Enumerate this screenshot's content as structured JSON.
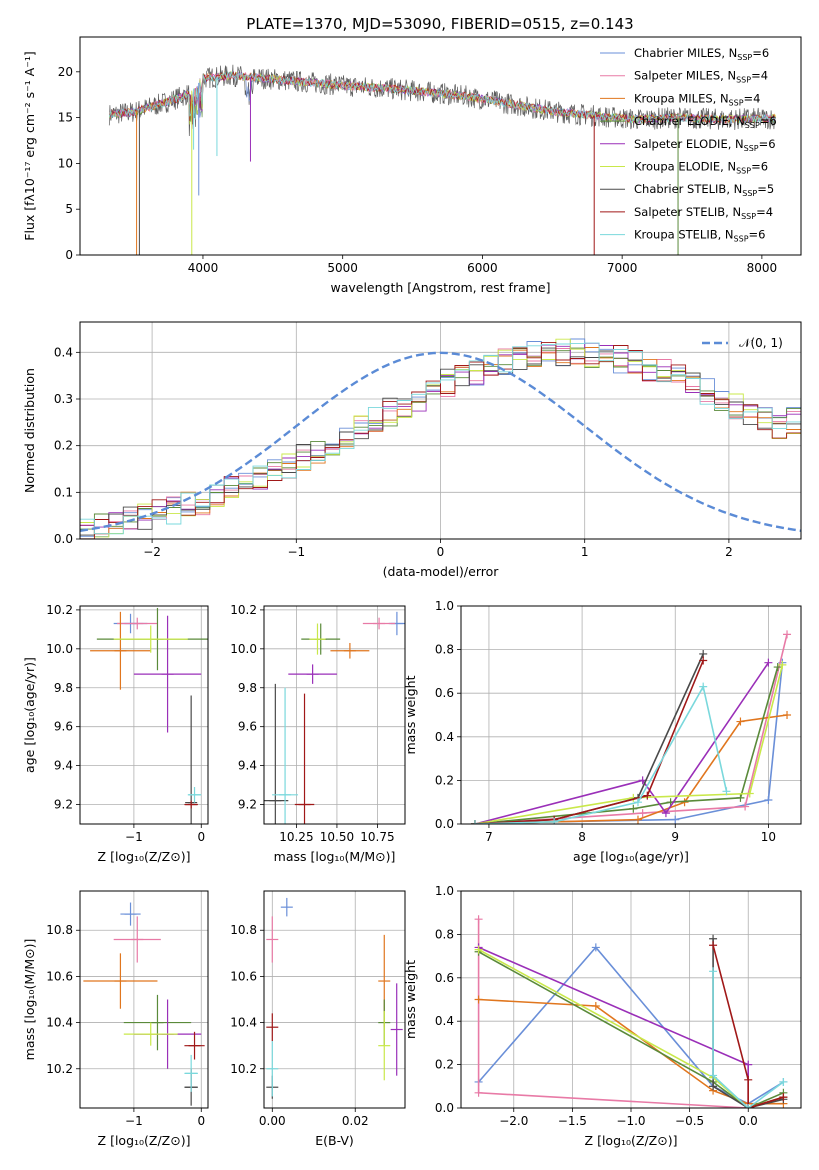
{
  "title": "PLATE=1370, MJD=53090, FIBERID=0515, z=0.143",
  "colors": {
    "Chabrier MILES": "#6a8fd8",
    "Salpeter MILES": "#e87aa6",
    "Kroupa MILES": "#e0761e",
    "Chabrier ELODIE": "#5a8a3a",
    "Salpeter ELODIE": "#9a2fb8",
    "Kroupa ELODIE": "#c9e84a",
    "Chabrier STELIB": "#4a4a4a",
    "Salpeter STELIB": "#a01818",
    "Kroupa STELIB": "#7ad8dc",
    "normal": "#5b8bd6",
    "grid": "#b0b0b0"
  },
  "chart_data": [
    {
      "type": "line",
      "id": "spectrum",
      "xlabel": "wavelength [Angstrom, rest frame]",
      "ylabel": "Flux [fλ10⁻¹⁷ erg cm⁻² s⁻¹ A⁻¹]",
      "xlim": [
        3120,
        8280
      ],
      "ylim": [
        0,
        23.8
      ],
      "xticks": [
        4000,
        5000,
        6000,
        7000,
        8000
      ],
      "yticks": [
        0,
        5,
        10,
        15,
        20
      ],
      "grid": false,
      "legend_position": "right",
      "legend": [
        {
          "name": "Chabrier MILES, N",
          "sub": "SSP",
          "tail": "=6"
        },
        {
          "name": "Salpeter MILES, N",
          "sub": "SSP",
          "tail": "=4"
        },
        {
          "name": "Kroupa MILES, N",
          "sub": "SSP",
          "tail": "=4"
        },
        {
          "name": "Chabrier ELODIE, N",
          "sub": "SSP",
          "tail": "=6"
        },
        {
          "name": "Salpeter ELODIE, N",
          "sub": "SSP",
          "tail": "=6"
        },
        {
          "name": "Kroupa ELODIE, N",
          "sub": "SSP",
          "tail": "=6"
        },
        {
          "name": "Chabrier STELIB, N",
          "sub": "SSP",
          "tail": "=5"
        },
        {
          "name": "Salpeter STELIB, N",
          "sub": "SSP",
          "tail": "=4"
        },
        {
          "name": "Kroupa STELIB, N",
          "sub": "SSP",
          "tail": "=6"
        }
      ],
      "continuum": {
        "x": [
          3300,
          3500,
          3700,
          3900,
          4000,
          4200,
          4500,
          4800,
          5000,
          5300,
          5600,
          5900,
          6200,
          6500,
          6800,
          7100,
          7400,
          7700,
          8000
        ],
        "y": [
          15.3,
          15.6,
          16.5,
          17.6,
          19.3,
          19.6,
          19.2,
          18.8,
          18.5,
          18.2,
          17.8,
          17.3,
          16.5,
          15.7,
          15.2,
          14.8,
          15.0,
          14.8,
          14.9
        ]
      },
      "dips": [
        {
          "x": 3525,
          "y": 0
        },
        {
          "x": 3545,
          "y": 0
        },
        {
          "x": 3920,
          "y": 0
        },
        {
          "x": 6800,
          "y": 0
        },
        {
          "x": 7400,
          "y": 0
        },
        {
          "x": 4100,
          "y": 10.8
        },
        {
          "x": 3970,
          "y": 6.5
        },
        {
          "x": 3933,
          "y": 11.5
        },
        {
          "x": 4340,
          "y": 10.2
        }
      ]
    },
    {
      "type": "line",
      "id": "residual-hist",
      "xlabel": "(data-model)/error",
      "ylabel": "Normed distribution",
      "xlim": [
        -2.5,
        2.5
      ],
      "ylim": [
        0,
        0.465
      ],
      "xticks": [
        -2,
        -1,
        0,
        1,
        2
      ],
      "yticks": [
        0.0,
        0.1,
        0.2,
        0.3,
        0.4
      ],
      "grid": true,
      "legend_position": "top-right",
      "legend": [
        {
          "name": "𝒩(0, 1)"
        }
      ],
      "bin_width": 0.1,
      "bins_start": -2.5,
      "series_base": [
        0.022,
        0.028,
        0.033,
        0.04,
        0.046,
        0.054,
        0.062,
        0.071,
        0.081,
        0.092,
        0.104,
        0.116,
        0.129,
        0.143,
        0.158,
        0.173,
        0.189,
        0.205,
        0.222,
        0.238,
        0.255,
        0.272,
        0.288,
        0.304,
        0.319,
        0.334,
        0.347,
        0.359,
        0.37,
        0.38,
        0.388,
        0.394,
        0.398,
        0.4,
        0.399,
        0.397,
        0.392,
        0.385,
        0.377,
        0.367,
        0.356,
        0.344,
        0.331,
        0.317,
        0.302,
        0.287,
        0.271,
        0.255,
        0.239
      ]
    },
    {
      "type": "scatter",
      "id": "Z-age",
      "xlabel": "Z [log₁₀(Z/Z⊙)]",
      "ylabel": "age  [log₁₀(age/yr)]",
      "xlim": [
        -1.8,
        0.1
      ],
      "ylim": [
        9.1,
        10.22
      ],
      "xticks": [
        -1,
        0
      ],
      "yticks": [
        9.2,
        9.4,
        9.6,
        9.8,
        10.0,
        10.2
      ],
      "grid": true,
      "points": [
        {
          "s": "Chabrier MILES",
          "x": -1.05,
          "y": 10.13,
          "ex": 0.25,
          "ey": 0.05
        },
        {
          "s": "Salpeter MILES",
          "x": -0.95,
          "y": 10.13,
          "ex": 0.3,
          "ey": 0.03
        },
        {
          "s": "Kroupa MILES",
          "x": -1.2,
          "y": 9.99,
          "ex": 0.45,
          "ey": 0.2
        },
        {
          "s": "Chabrier ELODIE",
          "x": -0.65,
          "y": 10.05,
          "ex": 0.9,
          "ey": 0.16
        },
        {
          "s": "Salpeter ELODIE",
          "x": -0.5,
          "y": 9.87,
          "ex": 0.5,
          "ey": 0.3
        },
        {
          "s": "Kroupa ELODIE",
          "x": -0.75,
          "y": 10.05,
          "ex": 0.55,
          "ey": 0.07
        },
        {
          "s": "Chabrier STELIB",
          "x": -0.15,
          "y": 9.21,
          "ex": 0.05,
          "ey": 0.55
        },
        {
          "s": "Salpeter STELIB",
          "x": -0.15,
          "y": 9.2,
          "ex": 0.1,
          "ey": 0.02
        },
        {
          "s": "Kroupa STELIB",
          "x": -0.1,
          "y": 9.25,
          "ex": 0.1,
          "ey": 0.04
        }
      ]
    },
    {
      "type": "scatter",
      "id": "mass-age",
      "xlabel": "mass [log₁₀(M/M⊙)]",
      "ylabel": "",
      "xlim": [
        10.05,
        10.92
      ],
      "ylim": [
        9.1,
        10.22
      ],
      "xticks": [
        10.25,
        10.5,
        10.75
      ],
      "xticklabels": [
        "10.25",
        "10.50",
        "10.75"
      ],
      "yticks": [
        9.2,
        9.4,
        9.6,
        9.8,
        10.0,
        10.2
      ],
      "grid": true,
      "points": [
        {
          "s": "Chabrier MILES",
          "x": 10.87,
          "y": 10.13,
          "ex": 0.05,
          "ey": 0.06
        },
        {
          "s": "Salpeter MILES",
          "x": 10.76,
          "y": 10.13,
          "ex": 0.1,
          "ey": 0.03
        },
        {
          "s": "Kroupa MILES",
          "x": 10.58,
          "y": 9.99,
          "ex": 0.12,
          "ey": 0.04
        },
        {
          "s": "Chabrier ELODIE",
          "x": 10.4,
          "y": 10.05,
          "ex": 0.12,
          "ey": 0.08
        },
        {
          "s": "Salpeter ELODIE",
          "x": 10.35,
          "y": 9.87,
          "ex": 0.15,
          "ey": 0.05
        },
        {
          "s": "Kroupa ELODIE",
          "x": 10.38,
          "y": 10.05,
          "ex": 0.05,
          "ey": 0.08
        },
        {
          "s": "Chabrier STELIB",
          "x": 10.12,
          "y": 9.22,
          "ex": 0.08,
          "ey": 0.6
        },
        {
          "s": "Salpeter STELIB",
          "x": 10.3,
          "y": 9.2,
          "ex": 0.06,
          "ey": 0.57
        },
        {
          "s": "Kroupa STELIB",
          "x": 10.18,
          "y": 9.25,
          "ex": 0.08,
          "ey": 0.55
        }
      ]
    },
    {
      "type": "line",
      "id": "age-weight",
      "xlabel": "age  [log₁₀(age/yr)]",
      "ylabel": "mass weight",
      "xlim": [
        6.7,
        10.35
      ],
      "ylim": [
        0,
        1.0
      ],
      "xticks": [
        7,
        8,
        9,
        10
      ],
      "yticks": [
        0.0,
        0.2,
        0.4,
        0.6,
        0.8,
        1.0
      ],
      "grid": true,
      "series": [
        {
          "s": "Chabrier MILES",
          "x": [
            6.85,
            7.7,
            9.0,
            10.0,
            10.15
          ],
          "y": [
            0.0,
            0.01,
            0.02,
            0.11,
            0.74
          ]
        },
        {
          "s": "Salpeter MILES",
          "x": [
            6.85,
            8.65,
            9.75,
            10.2
          ],
          "y": [
            0.0,
            0.05,
            0.08,
            0.87
          ]
        },
        {
          "s": "Kroupa MILES",
          "x": [
            6.85,
            8.6,
            9.1,
            9.7,
            10.2
          ],
          "y": [
            0.0,
            0.02,
            0.1,
            0.47,
            0.5
          ]
        },
        {
          "s": "Chabrier ELODIE",
          "x": [
            6.85,
            8.55,
            8.95,
            9.7,
            10.1
          ],
          "y": [
            0.0,
            0.07,
            0.1,
            0.12,
            0.72
          ]
        },
        {
          "s": "Salpeter ELODIE",
          "x": [
            6.85,
            8.65,
            8.9,
            10.0
          ],
          "y": [
            0.0,
            0.2,
            0.05,
            0.74
          ]
        },
        {
          "s": "Kroupa ELODIE",
          "x": [
            6.85,
            8.55,
            9.8,
            10.15
          ],
          "y": [
            0.0,
            0.12,
            0.14,
            0.73
          ]
        },
        {
          "s": "Chabrier STELIB",
          "x": [
            6.85,
            7.7,
            8.6,
            9.3
          ],
          "y": [
            0.0,
            0.02,
            0.12,
            0.78
          ]
        },
        {
          "s": "Salpeter STELIB",
          "x": [
            6.85,
            7.7,
            8.7,
            9.3
          ],
          "y": [
            0.0,
            0.02,
            0.13,
            0.75
          ]
        },
        {
          "s": "Kroupa STELIB",
          "x": [
            6.85,
            7.7,
            8.6,
            9.3,
            9.55
          ],
          "y": [
            0.0,
            0.01,
            0.1,
            0.63,
            0.15
          ]
        }
      ]
    },
    {
      "type": "scatter",
      "id": "Z-mass",
      "xlabel": "Z [log₁₀(Z/Z⊙)]",
      "ylabel": "mass [log₁₀(M/M⊙)]",
      "xlim": [
        -1.8,
        0.1
      ],
      "ylim": [
        10.03,
        10.97
      ],
      "xticks": [
        -1,
        0
      ],
      "yticks": [
        10.2,
        10.4,
        10.6,
        10.8
      ],
      "grid": true,
      "points": [
        {
          "s": "Chabrier MILES",
          "x": -1.05,
          "y": 10.87,
          "ex": 0.15,
          "ey": 0.05
        },
        {
          "s": "Salpeter MILES",
          "x": -0.95,
          "y": 10.76,
          "ex": 0.35,
          "ey": 0.1
        },
        {
          "s": "Kroupa MILES",
          "x": -1.2,
          "y": 10.58,
          "ex": 0.55,
          "ey": 0.12
        },
        {
          "s": "Chabrier ELODIE",
          "x": -0.65,
          "y": 10.4,
          "ex": 0.5,
          "ey": 0.12
        },
        {
          "s": "Salpeter ELODIE",
          "x": -0.5,
          "y": 10.35,
          "ex": 0.5,
          "ey": 0.15
        },
        {
          "s": "Kroupa ELODIE",
          "x": -0.75,
          "y": 10.35,
          "ex": 0.4,
          "ey": 0.05
        },
        {
          "s": "Chabrier STELIB",
          "x": -0.15,
          "y": 10.12,
          "ex": 0.1,
          "ey": 0.08
        },
        {
          "s": "Salpeter STELIB",
          "x": -0.1,
          "y": 10.3,
          "ex": 0.15,
          "ey": 0.06
        },
        {
          "s": "Kroupa STELIB",
          "x": -0.15,
          "y": 10.18,
          "ex": 0.1,
          "ey": 0.08
        }
      ]
    },
    {
      "type": "scatter",
      "id": "ebv-mass",
      "xlabel": "E(B-V)",
      "ylabel": "",
      "xlim": [
        -0.002,
        0.032
      ],
      "ylim": [
        10.03,
        10.97
      ],
      "xticks": [
        0.0,
        0.02
      ],
      "xticklabels": [
        "0.00",
        "0.02"
      ],
      "yticks": [
        10.2,
        10.4,
        10.6,
        10.8
      ],
      "grid": true,
      "points": [
        {
          "s": "Chabrier MILES",
          "x": 0.0035,
          "y": 10.9,
          "ex": 0,
          "ey": 0.04
        },
        {
          "s": "Salpeter MILES",
          "x": 0.0,
          "y": 10.76,
          "ex": 0,
          "ey": 0.1
        },
        {
          "s": "Kroupa MILES",
          "x": 0.027,
          "y": 10.58,
          "ex": 0,
          "ey": 0.2
        },
        {
          "s": "Chabrier ELODIE",
          "x": 0.027,
          "y": 10.4,
          "ex": 0,
          "ey": 0.1
        },
        {
          "s": "Salpeter ELODIE",
          "x": 0.03,
          "y": 10.37,
          "ex": 0,
          "ey": 0.2
        },
        {
          "s": "Kroupa ELODIE",
          "x": 0.027,
          "y": 10.3,
          "ex": 0,
          "ey": 0.15
        },
        {
          "s": "Chabrier STELIB",
          "x": 0.0,
          "y": 10.12,
          "ex": 0,
          "ey": 0.05
        },
        {
          "s": "Salpeter STELIB",
          "x": 0.0,
          "y": 10.38,
          "ex": 0,
          "ey": 0.06
        },
        {
          "s": "Kroupa STELIB",
          "x": 0.0,
          "y": 10.2,
          "ex": 0,
          "ey": 0.12
        }
      ]
    },
    {
      "type": "line",
      "id": "Z-weight",
      "xlabel": "Z [log₁₀(Z/Z⊙)]",
      "ylabel": "mass weight",
      "xlim": [
        -2.45,
        0.45
      ],
      "ylim": [
        0,
        1.0
      ],
      "xticks": [
        -2.0,
        -1.5,
        -1.0,
        -0.5,
        0.0
      ],
      "xticklabels": [
        "−2.0",
        "−1.5",
        "−1.0",
        "−0.5",
        "0.0"
      ],
      "yticks": [
        0.0,
        0.2,
        0.4,
        0.6,
        0.8,
        1.0
      ],
      "grid": true,
      "series": [
        {
          "s": "Chabrier MILES",
          "x": [
            -2.3,
            -1.3,
            -0.3,
            0.0,
            0.3
          ],
          "y": [
            0.12,
            0.74,
            0.1,
            0.02,
            0.12
          ]
        },
        {
          "s": "Salpeter MILES",
          "x": [
            -2.3,
            -2.3,
            0.0,
            0.3
          ],
          "y": [
            0.87,
            0.07,
            0.0,
            0.05
          ]
        },
        {
          "s": "Kroupa MILES",
          "x": [
            -2.3,
            -1.3,
            -0.3,
            0.0,
            0.3
          ],
          "y": [
            0.5,
            0.47,
            0.08,
            0.02,
            0.02
          ]
        },
        {
          "s": "Chabrier ELODIE",
          "x": [
            -2.3,
            -0.3,
            0.0,
            0.3
          ],
          "y": [
            0.72,
            0.12,
            0.0,
            0.07
          ]
        },
        {
          "s": "Salpeter ELODIE",
          "x": [
            -2.3,
            0.0,
            0.0,
            0.3
          ],
          "y": [
            0.74,
            0.2,
            0.0,
            0.05
          ]
        },
        {
          "s": "Kroupa ELODIE",
          "x": [
            -2.3,
            -0.3,
            0.0,
            0.3
          ],
          "y": [
            0.73,
            0.14,
            0.0,
            0.05
          ]
        },
        {
          "s": "Chabrier STELIB",
          "x": [
            -0.3,
            -0.3,
            0.0,
            0.3
          ],
          "y": [
            0.78,
            0.1,
            0.0,
            0.04
          ]
        },
        {
          "s": "Salpeter STELIB",
          "x": [
            -0.3,
            0.0,
            0.0,
            0.3
          ],
          "y": [
            0.75,
            0.13,
            0.0,
            0.05
          ]
        },
        {
          "s": "Kroupa STELIB",
          "x": [
            -0.3,
            -0.3,
            0.0,
            0.3
          ],
          "y": [
            0.63,
            0.15,
            0.0,
            0.12
          ]
        }
      ]
    }
  ]
}
